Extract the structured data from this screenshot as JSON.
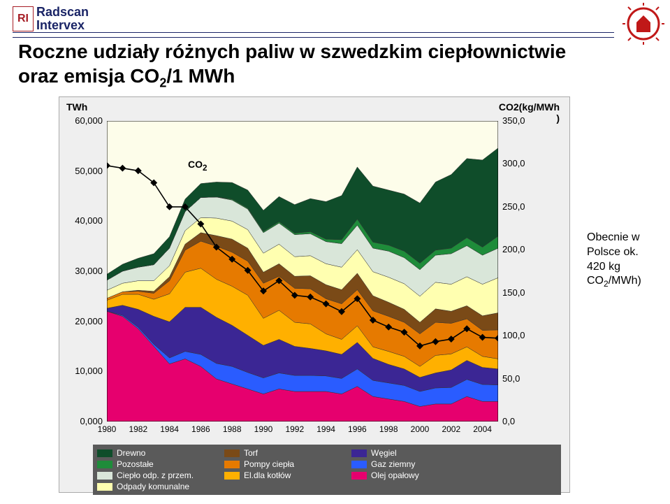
{
  "logo": {
    "short": "RI",
    "line1": "Radscan",
    "line2": "Intervex",
    "text_color": "#1a2466",
    "accent_color": "#a61d25"
  },
  "title_text": "Roczne udziały różnych paliw w szwedzkim ciepłownictwie oraz emisja CO₂/1 MWh",
  "side_note": {
    "line1": "Obecnie w Polsce ok.",
    "line2": "420 kg CO₂/MWh)"
  },
  "chart": {
    "type": "stacked-area-with-line",
    "background_color": "#efefef",
    "plot_bg": "#fdfdea",
    "y_left": {
      "label": "TWh",
      "min": 0,
      "max": 60000,
      "step": 10000,
      "tick_labels": [
        "0,000",
        "10,000",
        "20,000",
        "30,000",
        "40,000",
        "50,000",
        "60,000"
      ],
      "label_fontsize": 14
    },
    "y_right": {
      "label_line1": "CO2(kg/MWh",
      "label_line2": ")",
      "min": 0,
      "max": 350,
      "step": 50,
      "tick_labels": [
        "0,0",
        "50,0",
        "100,0",
        "150,0",
        "200,0",
        "250,0",
        "300,0",
        "350,0"
      ],
      "label_fontsize": 14
    },
    "x": {
      "years": [
        1980,
        1981,
        1982,
        1983,
        1984,
        1985,
        1986,
        1987,
        1988,
        1989,
        1990,
        1991,
        1992,
        1993,
        1994,
        1995,
        1996,
        1997,
        1998,
        1999,
        2000,
        2001,
        2002,
        2003,
        2004,
        2005
      ],
      "tick_years": [
        1980,
        1982,
        1984,
        1986,
        1988,
        1990,
        1992,
        1994,
        1996,
        1998,
        2000,
        2002,
        2004
      ],
      "fontsize": 12
    },
    "series": [
      {
        "name": "Olej opałowy",
        "color": "#e6006e",
        "values": [
          22000,
          21000,
          18500,
          15000,
          11500,
          12500,
          11000,
          8500,
          7500,
          6500,
          5500,
          6500,
          6000,
          6000,
          6000,
          5500,
          7000,
          5000,
          4500,
          4000,
          3000,
          3500,
          3500,
          5000,
          4000,
          4000
        ]
      },
      {
        "name": "Gaz ziemny",
        "color": "#2a5cff",
        "values": [
          0,
          200,
          300,
          400,
          1200,
          1500,
          2400,
          3100,
          3500,
          3300,
          3200,
          3200,
          3200,
          3200,
          3100,
          3100,
          3500,
          3200,
          3200,
          3200,
          3000,
          3200,
          3300,
          3400,
          3400,
          3300
        ]
      },
      {
        "name": "Węgiel",
        "color": "#3b2694",
        "values": [
          600,
          2000,
          3600,
          5600,
          7200,
          8800,
          9400,
          9200,
          8200,
          7400,
          6500,
          6700,
          5800,
          5400,
          5000,
          4800,
          5300,
          4400,
          3700,
          3300,
          2800,
          3000,
          3500,
          3800,
          3400,
          3200
        ]
      },
      {
        "name": "El.dla kotłów",
        "color": "#ffb000",
        "values": [
          1600,
          2200,
          3000,
          3400,
          5600,
          7000,
          7800,
          7600,
          7800,
          8000,
          5400,
          5800,
          4800,
          4900,
          3400,
          3000,
          3300,
          2300,
          2600,
          2500,
          2200,
          3500,
          3200,
          2700,
          2200,
          2000
        ]
      },
      {
        "name": "Pompy ciepła",
        "color": "#e67a00",
        "values": [
          400,
          500,
          600,
          1200,
          2600,
          4400,
          5400,
          6600,
          6800,
          6800,
          7000,
          6800,
          6800,
          7000,
          7000,
          7100,
          7200,
          7200,
          7000,
          6800,
          6500,
          6600,
          6100,
          5600,
          5200,
          5800
        ]
      },
      {
        "name": "Torf",
        "color": "#7a4a17",
        "values": [
          0,
          0,
          200,
          400,
          800,
          1200,
          1700,
          2100,
          2600,
          2600,
          2200,
          2500,
          2400,
          2600,
          2800,
          2800,
          3300,
          3000,
          2800,
          2600,
          2300,
          2700,
          2400,
          2600,
          2900,
          3400
        ]
      },
      {
        "name": "Odpady komunalne",
        "color": "#ffffb0",
        "values": [
          1600,
          1700,
          1900,
          2100,
          2200,
          2700,
          3000,
          3500,
          3600,
          3700,
          3800,
          3900,
          3900,
          4000,
          4200,
          4500,
          4700,
          4800,
          5000,
          5100,
          5200,
          5300,
          5400,
          5800,
          6300,
          7000
        ]
      },
      {
        "name": "Ciepło odp. z przem.",
        "color": "#d9e6d9",
        "values": [
          2000,
          2400,
          2700,
          3200,
          3500,
          3800,
          4000,
          4200,
          4200,
          4100,
          4100,
          4200,
          4400,
          4400,
          4400,
          4700,
          4900,
          4700,
          5200,
          5200,
          5300,
          5400,
          6100,
          6200,
          5800,
          5900
        ]
      },
      {
        "name": "Pozostałe",
        "color": "#1e8c3a",
        "values": [
          0,
          0,
          0,
          0,
          0,
          0,
          0,
          0,
          200,
          200,
          250,
          300,
          300,
          400,
          500,
          800,
          1200,
          1200,
          1200,
          1300,
          1300,
          1000,
          1100,
          1600,
          1600,
          2400
        ]
      },
      {
        "name": "Drewno",
        "color": "#0f4d2a",
        "values": [
          1200,
          1400,
          1800,
          2200,
          2300,
          2500,
          2800,
          3000,
          3300,
          3600,
          4200,
          5000,
          5700,
          6600,
          7500,
          8800,
          10400,
          11200,
          11000,
          11400,
          12000,
          13600,
          14700,
          15800,
          17400,
          17600
        ]
      }
    ],
    "co2_line": {
      "label_text": "CO₂",
      "label_fontsize": 14,
      "color": "#000000",
      "marker_color": "#000000",
      "marker_size": 7,
      "values": [
        298,
        295,
        292,
        278,
        250,
        250,
        230,
        203,
        189,
        176,
        152,
        164,
        147,
        145,
        137,
        128,
        143,
        118,
        110,
        104,
        88,
        93,
        96,
        108,
        98,
        97
      ]
    },
    "legend": {
      "font_color": "#ffffff",
      "bg_color": "#5a5a5a",
      "fontsize": 12,
      "items": [
        {
          "label": "Drewno",
          "color": "#0f4d2a"
        },
        {
          "label": "Pozostałe",
          "color": "#1e8c3a"
        },
        {
          "label": "Ciepło odp. z przem.",
          "color": "#d9e6d9"
        },
        {
          "label": "Odpady komunalne",
          "color": "#ffffb0"
        },
        {
          "label": "Torf",
          "color": "#7a4a17"
        },
        {
          "label": "Pompy ciepła",
          "color": "#e67a00"
        },
        {
          "label": "El.dla kotłów",
          "color": "#ffb000"
        },
        {
          "label": "Węgiel",
          "color": "#3b2694"
        },
        {
          "label": "Gaz ziemny",
          "color": "#2a5cff"
        },
        {
          "label": "Olej opałowy",
          "color": "#e6006e"
        }
      ]
    }
  }
}
